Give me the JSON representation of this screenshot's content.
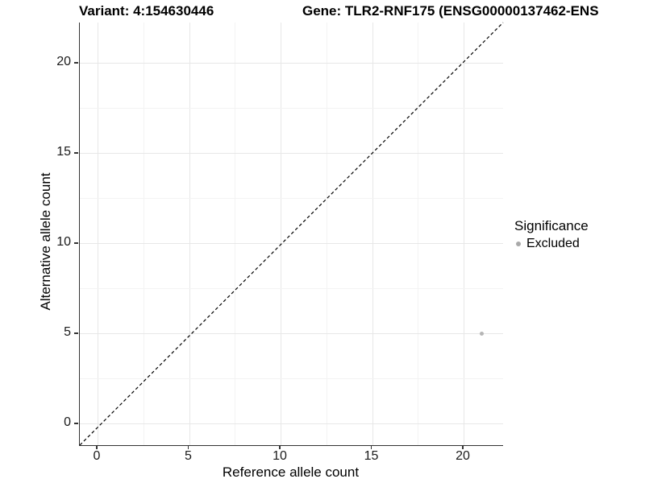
{
  "titles": {
    "variant": "Variant: 4:154630446",
    "gene": "Gene: TLR2-RNF175 (ENSG00000137462-ENS"
  },
  "chart_data": {
    "type": "scatter",
    "title_left": "Variant: 4:154630446",
    "title_right": "Gene: TLR2-RNF175 (ENSG00000137462-ENS",
    "xlabel": "Reference allele count",
    "ylabel": "Alternative allele count",
    "x_ticks": [
      0,
      5,
      10,
      15,
      20
    ],
    "y_ticks": [
      0,
      5,
      10,
      15,
      20
    ],
    "xlim": [
      -1,
      22.1
    ],
    "ylim": [
      -1.2,
      22.2
    ],
    "grid": "major and minor, light gray, on white background",
    "reference_line": {
      "type": "identity y=x",
      "style": "dashed",
      "color": "#000000"
    },
    "series": [
      {
        "name": "Excluded",
        "color": "#b5b5b5",
        "points": [
          {
            "x": 21,
            "y": 5
          }
        ]
      }
    ],
    "legend": {
      "title": "Significance",
      "position": "right",
      "items": [
        {
          "label": "Excluded",
          "color": "#a9a9a9"
        }
      ]
    }
  },
  "colors": {
    "background": "#ffffff",
    "axis_line": "#333333",
    "grid_major": "#e7e7e7",
    "grid_minor": "#f3f3f3",
    "excluded_point": "#b5b5b5",
    "text": "#000000"
  }
}
